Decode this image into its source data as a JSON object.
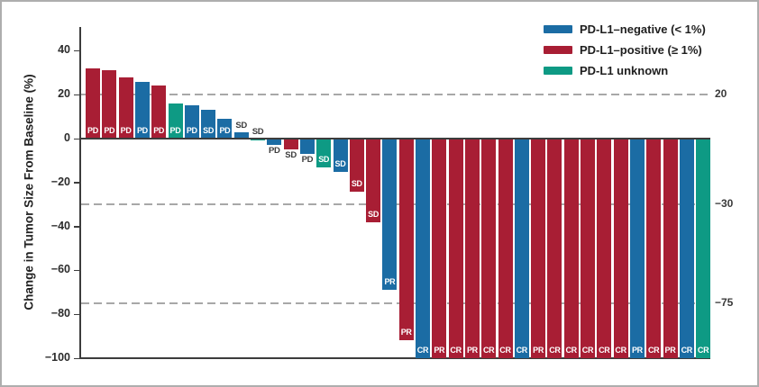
{
  "chart_data": {
    "type": "bar",
    "title": "",
    "xlabel": "",
    "ylabel": "Change in Tumor Size From Baseline (%)",
    "ylim": [
      -100,
      50
    ],
    "grid": "dashed-reference-lines-only",
    "legend_position": "top-right",
    "colors": {
      "negative": "#1B6CA4",
      "positive": "#A81E34",
      "unknown": "#0E9A84"
    },
    "y_ticks": [
      {
        "value": 40,
        "label": "40"
      },
      {
        "value": 20,
        "label": "20"
      },
      {
        "value": 0,
        "label": "0"
      },
      {
        "value": -20,
        "label": "−20"
      },
      {
        "value": -40,
        "label": "−40"
      },
      {
        "value": -60,
        "label": "−60"
      },
      {
        "value": -80,
        "label": "−80"
      },
      {
        "value": -100,
        "label": "−100"
      }
    ],
    "reference_lines": [
      {
        "value": 20,
        "label": "20"
      },
      {
        "value": -30,
        "label": "−30"
      },
      {
        "value": -75,
        "label": "−75"
      }
    ],
    "legend": [
      {
        "key": "negative",
        "label": "PD-L1–negative (< 1%)"
      },
      {
        "key": "positive",
        "label": "PD-L1–positive (≥ 1%)"
      },
      {
        "key": "unknown",
        "label": "PD-L1 unknown"
      }
    ],
    "bars": [
      {
        "value": 32,
        "pdl1": "positive",
        "response": "PD",
        "label_pos": "inside"
      },
      {
        "value": 31,
        "pdl1": "positive",
        "response": "PD",
        "label_pos": "inside"
      },
      {
        "value": 28,
        "pdl1": "positive",
        "response": "PD",
        "label_pos": "inside"
      },
      {
        "value": 26,
        "pdl1": "negative",
        "response": "PD",
        "label_pos": "inside"
      },
      {
        "value": 24,
        "pdl1": "positive",
        "response": "PD",
        "label_pos": "inside"
      },
      {
        "value": 16,
        "pdl1": "unknown",
        "response": "PD",
        "label_pos": "inside"
      },
      {
        "value": 15,
        "pdl1": "negative",
        "response": "PD",
        "label_pos": "inside"
      },
      {
        "value": 13,
        "pdl1": "negative",
        "response": "SD",
        "label_pos": "inside"
      },
      {
        "value": 9,
        "pdl1": "negative",
        "response": "PD",
        "label_pos": "inside"
      },
      {
        "value": 3,
        "pdl1": "negative",
        "response": "SD",
        "label_pos": "above"
      },
      {
        "value": -1,
        "pdl1": "unknown",
        "response": "SD",
        "label_pos": "above"
      },
      {
        "value": -3,
        "pdl1": "negative",
        "response": "PD",
        "label_pos": "below"
      },
      {
        "value": -5,
        "pdl1": "positive",
        "response": "SD",
        "label_pos": "below"
      },
      {
        "value": -7,
        "pdl1": "negative",
        "response": "PD",
        "label_pos": "below"
      },
      {
        "value": -13,
        "pdl1": "unknown",
        "response": "SD",
        "label_pos": "inside"
      },
      {
        "value": -15,
        "pdl1": "negative",
        "response": "SD",
        "label_pos": "inside"
      },
      {
        "value": -24,
        "pdl1": "positive",
        "response": "SD",
        "label_pos": "inside"
      },
      {
        "value": -38,
        "pdl1": "positive",
        "response": "SD",
        "label_pos": "inside"
      },
      {
        "value": -69,
        "pdl1": "negative",
        "response": "PR",
        "label_pos": "inside"
      },
      {
        "value": -92,
        "pdl1": "positive",
        "response": "PR",
        "label_pos": "inside"
      },
      {
        "value": -100,
        "pdl1": "negative",
        "response": "CR",
        "label_pos": "inside"
      },
      {
        "value": -100,
        "pdl1": "positive",
        "response": "PR",
        "label_pos": "inside"
      },
      {
        "value": -100,
        "pdl1": "positive",
        "response": "CR",
        "label_pos": "inside"
      },
      {
        "value": -100,
        "pdl1": "positive",
        "response": "PR",
        "label_pos": "inside"
      },
      {
        "value": -100,
        "pdl1": "positive",
        "response": "CR",
        "label_pos": "inside"
      },
      {
        "value": -100,
        "pdl1": "positive",
        "response": "CR",
        "label_pos": "inside"
      },
      {
        "value": -100,
        "pdl1": "negative",
        "response": "CR",
        "label_pos": "inside"
      },
      {
        "value": -100,
        "pdl1": "positive",
        "response": "PR",
        "label_pos": "inside"
      },
      {
        "value": -100,
        "pdl1": "positive",
        "response": "CR",
        "label_pos": "inside"
      },
      {
        "value": -100,
        "pdl1": "positive",
        "response": "CR",
        "label_pos": "inside"
      },
      {
        "value": -100,
        "pdl1": "positive",
        "response": "CR",
        "label_pos": "inside"
      },
      {
        "value": -100,
        "pdl1": "positive",
        "response": "CR",
        "label_pos": "inside"
      },
      {
        "value": -100,
        "pdl1": "positive",
        "response": "CR",
        "label_pos": "inside"
      },
      {
        "value": -100,
        "pdl1": "negative",
        "response": "PR",
        "label_pos": "inside"
      },
      {
        "value": -100,
        "pdl1": "positive",
        "response": "CR",
        "label_pos": "inside"
      },
      {
        "value": -100,
        "pdl1": "positive",
        "response": "PR",
        "label_pos": "inside"
      },
      {
        "value": -100,
        "pdl1": "negative",
        "response": "CR",
        "label_pos": "inside"
      },
      {
        "value": -100,
        "pdl1": "unknown",
        "response": "CR",
        "label_pos": "inside"
      }
    ]
  }
}
